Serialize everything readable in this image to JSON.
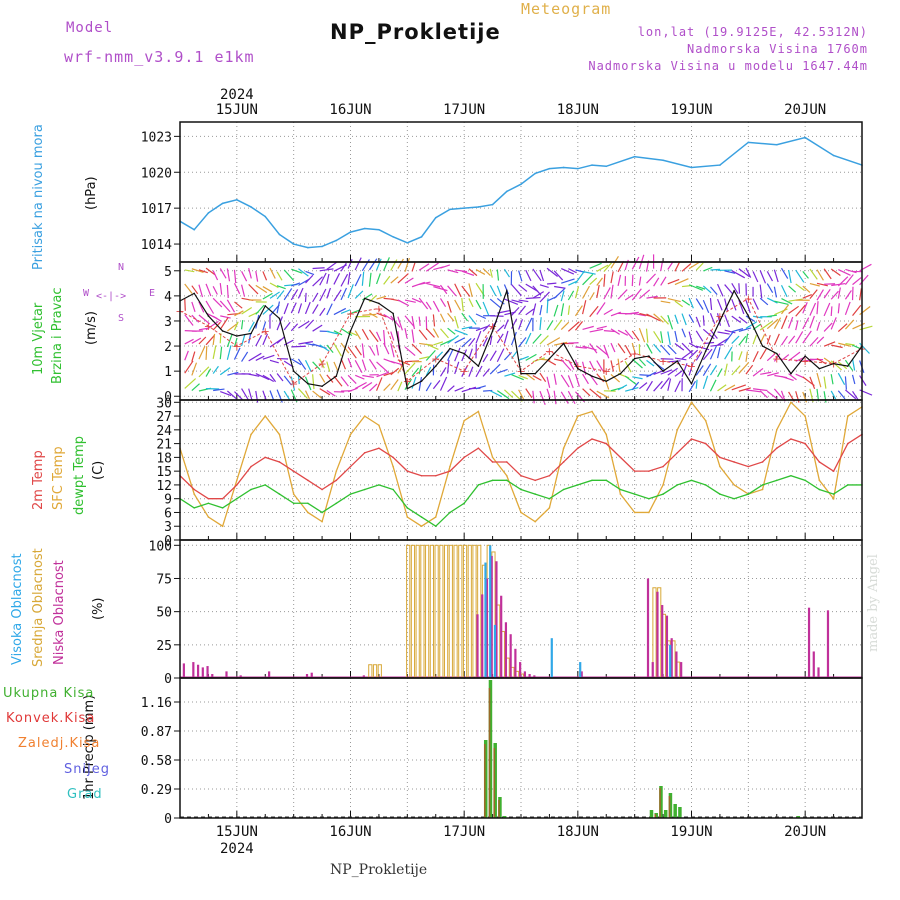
{
  "header": {
    "model_label": "Model",
    "model_name": "wrf-nmm_v3.9.1 e1km",
    "title": "NP_Prokletije",
    "meteogram": "Meteogram",
    "lonlat": "lon,lat (19.9125E, 42.5312N)",
    "elevation": "Nadmorska Visina 1760m",
    "model_elevation": "Nadmorska Visina u modelu 1647.44m"
  },
  "footer": {
    "station": "NP_Prokletije",
    "credit": "made by Angel"
  },
  "colors": {
    "pressure": "#3aa0e0",
    "temp": "#e04848",
    "sfc": "#e0a838",
    "dewpt": "#30c030",
    "high_cloud": "#30a8e8",
    "mid_cloud": "#d8a838",
    "low_cloud": "#c0309a",
    "total_precip": "#40b030",
    "conv_precip": "#e03838",
    "frozen_precip": "#f08030",
    "snow": "#6060e0",
    "hail": "#30c0c0",
    "wind_speed": "#111111",
    "wind_gust": "#e04848"
  },
  "chart_data": [
    {
      "type": "line",
      "panel": "pressure",
      "ylabel": [
        "Pritisak na nivou mora",
        "(hPa)"
      ],
      "yticks": [
        1014,
        1017,
        1020,
        1023
      ],
      "ylim": [
        1012.5,
        1024.2
      ],
      "top_xlabels": [
        "15JUN",
        "16JUN",
        "17JUN",
        "18JUN",
        "19JUN",
        "20JUN"
      ],
      "top_year": "2024",
      "series": [
        {
          "x": [
            0,
            3,
            6,
            9,
            12,
            15,
            18,
            21,
            24,
            27,
            30,
            33,
            36,
            39,
            42,
            45,
            48,
            51,
            54,
            57,
            60,
            63,
            66,
            69,
            72,
            75,
            78,
            81,
            84,
            87,
            90,
            96,
            102,
            108,
            114,
            120,
            126,
            132,
            138,
            144
          ],
          "y": [
            1015.9,
            1015.2,
            1016.6,
            1017.4,
            1017.7,
            1017.1,
            1016.3,
            1014.8,
            1014.0,
            1013.7,
            1013.8,
            1014.3,
            1015.0,
            1015.3,
            1015.2,
            1014.6,
            1014.1,
            1014.6,
            1016.2,
            1016.9,
            1017.0,
            1017.1,
            1017.3,
            1018.4,
            1019.0,
            1019.9,
            1020.3,
            1020.4,
            1020.3,
            1020.6,
            1020.5,
            1021.3,
            1021.0,
            1020.4,
            1020.6,
            1022.5,
            1022.3,
            1022.9,
            1021.4,
            1020.6
          ]
        }
      ]
    },
    {
      "type": "line",
      "panel": "wind",
      "ylabel": [
        "10m Vjetar",
        "Brzina i Pravac",
        "(m/s)"
      ],
      "yticks": [
        0,
        1,
        2,
        3,
        4,
        5
      ],
      "ylim": [
        -0.15,
        5.35
      ],
      "compass": {
        "n": "N",
        "e": "E",
        "s": "S",
        "w": "W"
      },
      "series": [
        {
          "name": "speed",
          "x": [
            0,
            3,
            6,
            9,
            12,
            15,
            18,
            21,
            24,
            27,
            30,
            33,
            36,
            39,
            42,
            45,
            48,
            51,
            54,
            57,
            60,
            63,
            66,
            69,
            72,
            75,
            78,
            81,
            84,
            87,
            90,
            93,
            96,
            99,
            102,
            105,
            108,
            111,
            114,
            117,
            120,
            123,
            126,
            129,
            132,
            135,
            138,
            141,
            144
          ],
          "y": [
            3.8,
            4.1,
            3.2,
            2.6,
            2.4,
            2.5,
            3.6,
            3.1,
            1.0,
            0.5,
            0.4,
            0.8,
            2.6,
            3.9,
            3.7,
            3.3,
            0.3,
            0.6,
            1.2,
            1.9,
            1.7,
            1.2,
            2.6,
            4.2,
            0.9,
            0.9,
            1.5,
            2.1,
            1.1,
            0.8,
            0.6,
            0.9,
            1.5,
            1.6,
            1.0,
            1.4,
            0.5,
            1.8,
            3.0,
            4.2,
            3.2,
            2.0,
            1.7,
            0.9,
            1.6,
            1.1,
            1.3,
            1.2,
            2.0
          ]
        },
        {
          "name": "gust",
          "x": [
            0,
            6,
            12,
            18,
            24,
            30,
            36,
            42,
            48,
            54,
            60,
            66,
            72,
            78,
            84,
            90,
            96,
            102,
            108,
            114,
            120,
            126,
            132,
            138,
            144
          ],
          "y": [
            3.4,
            2.8,
            2.0,
            2.6,
            0.5,
            1.3,
            3.3,
            3.5,
            0.6,
            1.5,
            1.0,
            2.8,
            1.0,
            1.8,
            1.2,
            1.0,
            1.7,
            1.4,
            1.2,
            3.2,
            3.9,
            1.5,
            1.4,
            1.3,
            1.9
          ]
        }
      ]
    },
    {
      "type": "line",
      "panel": "temperature",
      "ylabel": [
        "2m Temp",
        "SFC Temp",
        "dewpt Temp",
        "(C)"
      ],
      "yticks": [
        0,
        3,
        6,
        9,
        12,
        15,
        18,
        21,
        24,
        27,
        30
      ],
      "ylim": [
        0,
        30.5
      ],
      "series": [
        {
          "name": "2m Temp",
          "x": [
            0,
            3,
            6,
            9,
            12,
            15,
            18,
            21,
            24,
            27,
            30,
            33,
            36,
            39,
            42,
            45,
            48,
            51,
            54,
            57,
            60,
            63,
            66,
            69,
            72,
            75,
            78,
            81,
            84,
            87,
            90,
            93,
            96,
            99,
            102,
            105,
            108,
            111,
            114,
            117,
            120,
            123,
            126,
            129,
            132,
            135,
            138,
            141,
            144
          ],
          "y": [
            14,
            11,
            9,
            9,
            12,
            16,
            18,
            17,
            15,
            13,
            11,
            13,
            16,
            19,
            20,
            18,
            15,
            14,
            14,
            15,
            18,
            20,
            17,
            17,
            14,
            13,
            14,
            17,
            20,
            22,
            21,
            18,
            15,
            15,
            16,
            19,
            22,
            21,
            18,
            17,
            16,
            17,
            20,
            22,
            21,
            17,
            15,
            21,
            23
          ]
        },
        {
          "name": "SFC Temp",
          "x": [
            0,
            3,
            6,
            9,
            12,
            15,
            18,
            21,
            24,
            27,
            30,
            33,
            36,
            39,
            42,
            45,
            48,
            51,
            54,
            57,
            60,
            63,
            66,
            69,
            72,
            75,
            78,
            81,
            84,
            87,
            90,
            93,
            96,
            99,
            102,
            105,
            108,
            111,
            114,
            117,
            120,
            123,
            126,
            129,
            132,
            135,
            138,
            141,
            144
          ],
          "y": [
            20,
            10,
            5,
            3,
            13,
            23,
            27,
            23,
            10,
            6,
            4,
            15,
            23,
            27,
            25,
            16,
            5,
            3,
            5,
            16,
            26,
            28,
            18,
            14,
            6,
            4,
            7,
            20,
            27,
            28,
            23,
            10,
            6,
            6,
            12,
            24,
            30,
            26,
            16,
            12,
            10,
            11,
            24,
            30,
            27,
            13,
            9,
            27,
            29
          ]
        },
        {
          "name": "dewpt Temp",
          "x": [
            0,
            3,
            6,
            9,
            12,
            15,
            18,
            21,
            24,
            27,
            30,
            33,
            36,
            39,
            42,
            45,
            48,
            51,
            54,
            57,
            60,
            63,
            66,
            69,
            72,
            75,
            78,
            81,
            84,
            87,
            90,
            93,
            96,
            99,
            102,
            105,
            108,
            111,
            114,
            117,
            120,
            123,
            126,
            129,
            132,
            135,
            138,
            141,
            144
          ],
          "y": [
            9,
            7,
            8,
            7,
            9,
            11,
            12,
            10,
            8,
            8,
            6,
            8,
            10,
            11,
            12,
            11,
            7,
            5,
            3,
            6,
            8,
            12,
            13,
            13,
            11,
            10,
            9,
            11,
            12,
            13,
            13,
            11,
            10,
            9,
            10,
            12,
            13,
            12,
            10,
            9,
            10,
            12,
            13,
            14,
            13,
            11,
            10,
            12,
            12
          ]
        }
      ]
    },
    {
      "type": "bar",
      "panel": "clouds",
      "ylabel": [
        "Visoka Oblacnost",
        "Srednja Oblacnost",
        "Niska Oblacnost",
        "(%)"
      ],
      "yticks": [
        0,
        25,
        50,
        75,
        100
      ],
      "ylim": [
        0,
        104
      ],
      "series": [
        {
          "name": "Visoka Oblacnost",
          "x": [
            64,
            65,
            66,
            78,
            84,
            103
          ],
          "values": [
            87,
            100,
            40,
            30,
            12,
            25
          ]
        },
        {
          "name": "Srednja Oblacnost",
          "x": [
            40,
            41,
            42,
            48,
            49,
            50,
            51,
            52,
            53,
            54,
            55,
            56,
            57,
            58,
            59,
            60,
            61,
            62,
            63,
            64,
            65,
            66,
            67,
            68,
            69,
            70,
            71,
            72,
            100,
            101,
            102,
            103,
            104,
            105
          ],
          "values": [
            10,
            10,
            10,
            100,
            100,
            100,
            100,
            100,
            100,
            100,
            100,
            100,
            100,
            100,
            100,
            100,
            100,
            100,
            100,
            85,
            100,
            95,
            55,
            35,
            15,
            8,
            5,
            3,
            68,
            68,
            48,
            28,
            28,
            12
          ]
        },
        {
          "name": "Niska Oblacnost",
          "x": [
            0,
            2,
            3,
            4,
            5,
            6,
            9,
            12,
            18,
            26,
            27,
            38,
            62,
            63,
            64,
            65,
            66,
            67,
            68,
            69,
            70,
            71,
            72,
            73,
            74,
            84,
            98,
            99,
            100,
            101,
            102,
            103,
            104,
            105,
            132,
            133,
            134,
            136
          ],
          "values": [
            11,
            12,
            10,
            8,
            9,
            3,
            5,
            2,
            5,
            3,
            4,
            2,
            48,
            63,
            75,
            92,
            88,
            62,
            42,
            33,
            22,
            12,
            5,
            3,
            2,
            5,
            75,
            12,
            65,
            55,
            47,
            30,
            20,
            12,
            53,
            20,
            8,
            51
          ]
        }
      ]
    },
    {
      "type": "bar",
      "panel": "precipitation",
      "ylabel": [
        "1hr Precip (mm)"
      ],
      "yticks": [
        0,
        0.29,
        0.58,
        0.87,
        1.16
      ],
      "ylim": [
        0,
        1.4
      ],
      "bottom_xlabels": [
        "15JUN",
        "16JUN",
        "17JUN",
        "18JUN",
        "19JUN",
        "20JUN"
      ],
      "bottom_year": "2024",
      "legend": [
        "Ukupna Kisa",
        "Konvek.Kisa",
        "Zaledj.Kisa",
        "Snijeg",
        "Grad"
      ],
      "series": [
        {
          "name": "Ukupna Kisa",
          "x": [
            64,
            65,
            66,
            67,
            68,
            99,
            100,
            101,
            102,
            103,
            104,
            105,
            130
          ],
          "values": [
            0.78,
            1.38,
            0.75,
            0.21,
            0.02,
            0.08,
            0.05,
            0.32,
            0.08,
            0.25,
            0.14,
            0.11,
            0.02
          ]
        },
        {
          "name": "Konvek.Kisa",
          "x": [
            64,
            65,
            66,
            67,
            100,
            101,
            103
          ],
          "values": [
            0.74,
            1.3,
            0.7,
            0.18,
            0.04,
            0.3,
            0.22
          ]
        }
      ]
    }
  ]
}
